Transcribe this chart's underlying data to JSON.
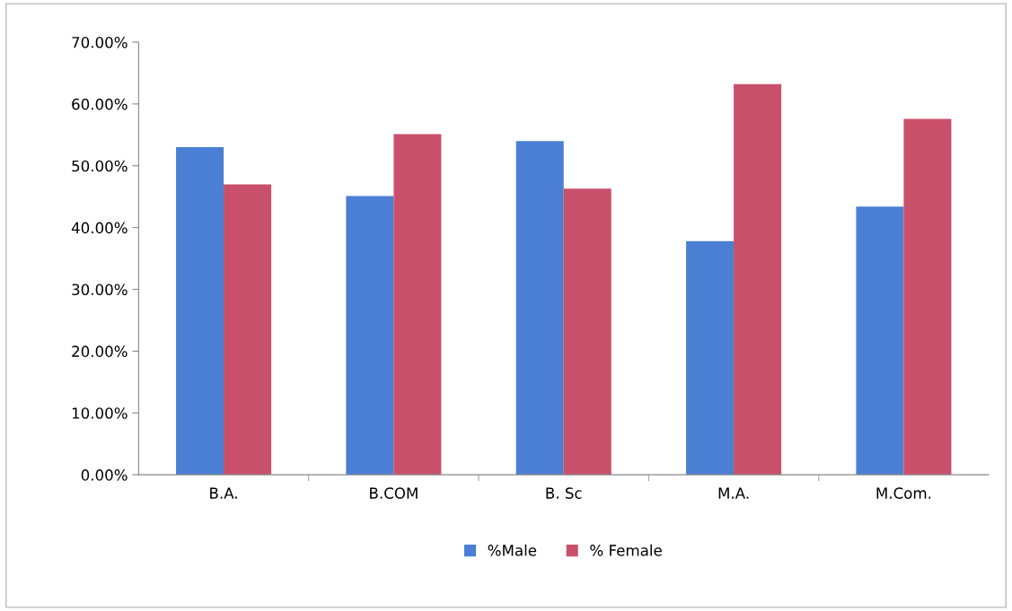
{
  "chart_data": {
    "type": "bar",
    "categories": [
      "B.A.",
      "B.COM",
      "B. Sc",
      "M.A.",
      "M.Com."
    ],
    "series": [
      {
        "name": "%Male",
        "color": "#4a7fd4",
        "values": [
          53.0,
          45.1,
          54.0,
          37.8,
          43.4
        ]
      },
      {
        "name": "% Female",
        "color": "#c9506a",
        "values": [
          47.0,
          55.1,
          46.3,
          63.2,
          57.6
        ]
      }
    ],
    "ylim": [
      0,
      70
    ],
    "yticks": [
      {
        "value": 0,
        "label": "0.00%"
      },
      {
        "value": 10,
        "label": "10.00%"
      },
      {
        "value": 20,
        "label": "20.00%"
      },
      {
        "value": 30,
        "label": "30.00%"
      },
      {
        "value": 40,
        "label": "40.00%"
      },
      {
        "value": 50,
        "label": "50.00%"
      },
      {
        "value": 60,
        "label": "60.00%"
      },
      {
        "value": 70,
        "label": "70.00%"
      }
    ],
    "grid": false,
    "legend": "bottom"
  }
}
